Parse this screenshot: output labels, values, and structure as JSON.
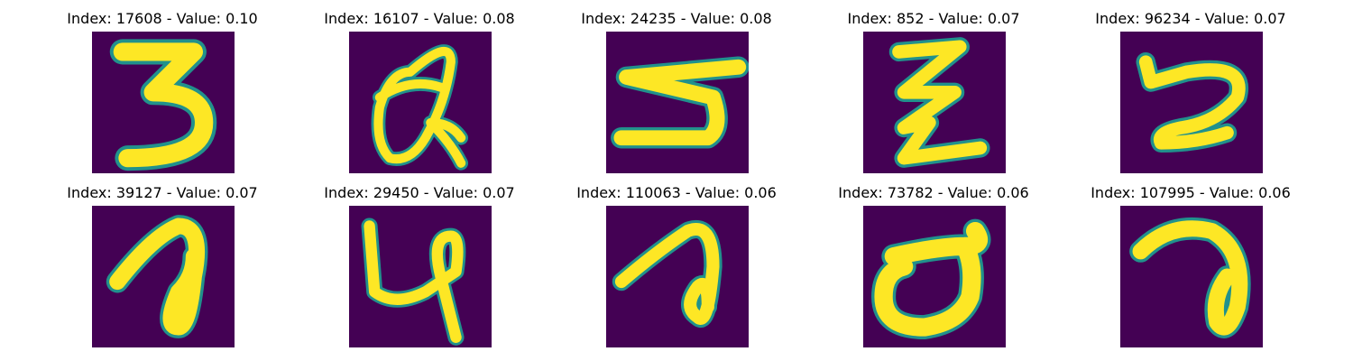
{
  "colors": {
    "background": "#440154",
    "stroke": "#fde725",
    "edge": "#21918c"
  },
  "panels": [
    {
      "title": "Index: 17608 - Value: 0.10"
    },
    {
      "title": "Index: 16107 - Value: 0.08"
    },
    {
      "title": "Index: 24235 - Value: 0.08"
    },
    {
      "title": "Index: 852 - Value: 0.07"
    },
    {
      "title": "Index: 96234 - Value: 0.07"
    },
    {
      "title": "Index: 39127 - Value: 0.07"
    },
    {
      "title": "Index: 29450 - Value: 0.07"
    },
    {
      "title": "Index: 110063 - Value: 0.06"
    },
    {
      "title": "Index: 73782 - Value: 0.06"
    },
    {
      "title": "Index: 107995 - Value: 0.06"
    }
  ]
}
